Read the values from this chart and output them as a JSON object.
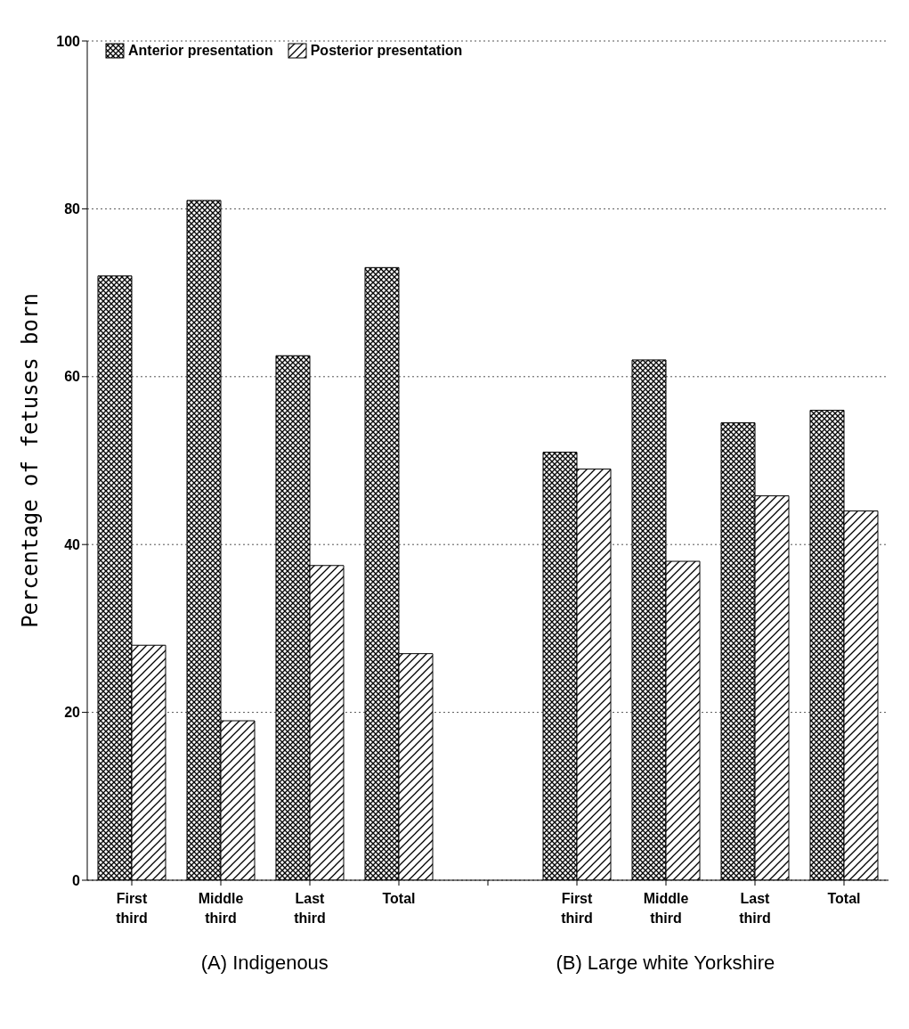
{
  "chart_data": {
    "type": "bar",
    "ylabel": "Percentage of fetuses born",
    "categories": [
      "First third",
      "Middle third",
      "Last third",
      "Total",
      null,
      "First third",
      "Middle third",
      "Last third",
      "Total"
    ],
    "series": [
      {
        "name": "Anterior presentation",
        "color": "#000000",
        "values": [
          72,
          81,
          62.5,
          73,
          null,
          51,
          62,
          54.5,
          56
        ]
      },
      {
        "name": "Posterior presentation",
        "color": "#000000",
        "values": [
          28,
          19,
          37.5,
          27,
          null,
          49,
          38,
          45.8,
          44
        ]
      }
    ],
    "ylim": [
      0,
      100
    ],
    "yticks": [
      0,
      20,
      40,
      60,
      80,
      100
    ],
    "grid": "y",
    "legend": "top left",
    "annotations": [
      "(A) Indigenous",
      "(B) Large white Yorkshire"
    ]
  }
}
